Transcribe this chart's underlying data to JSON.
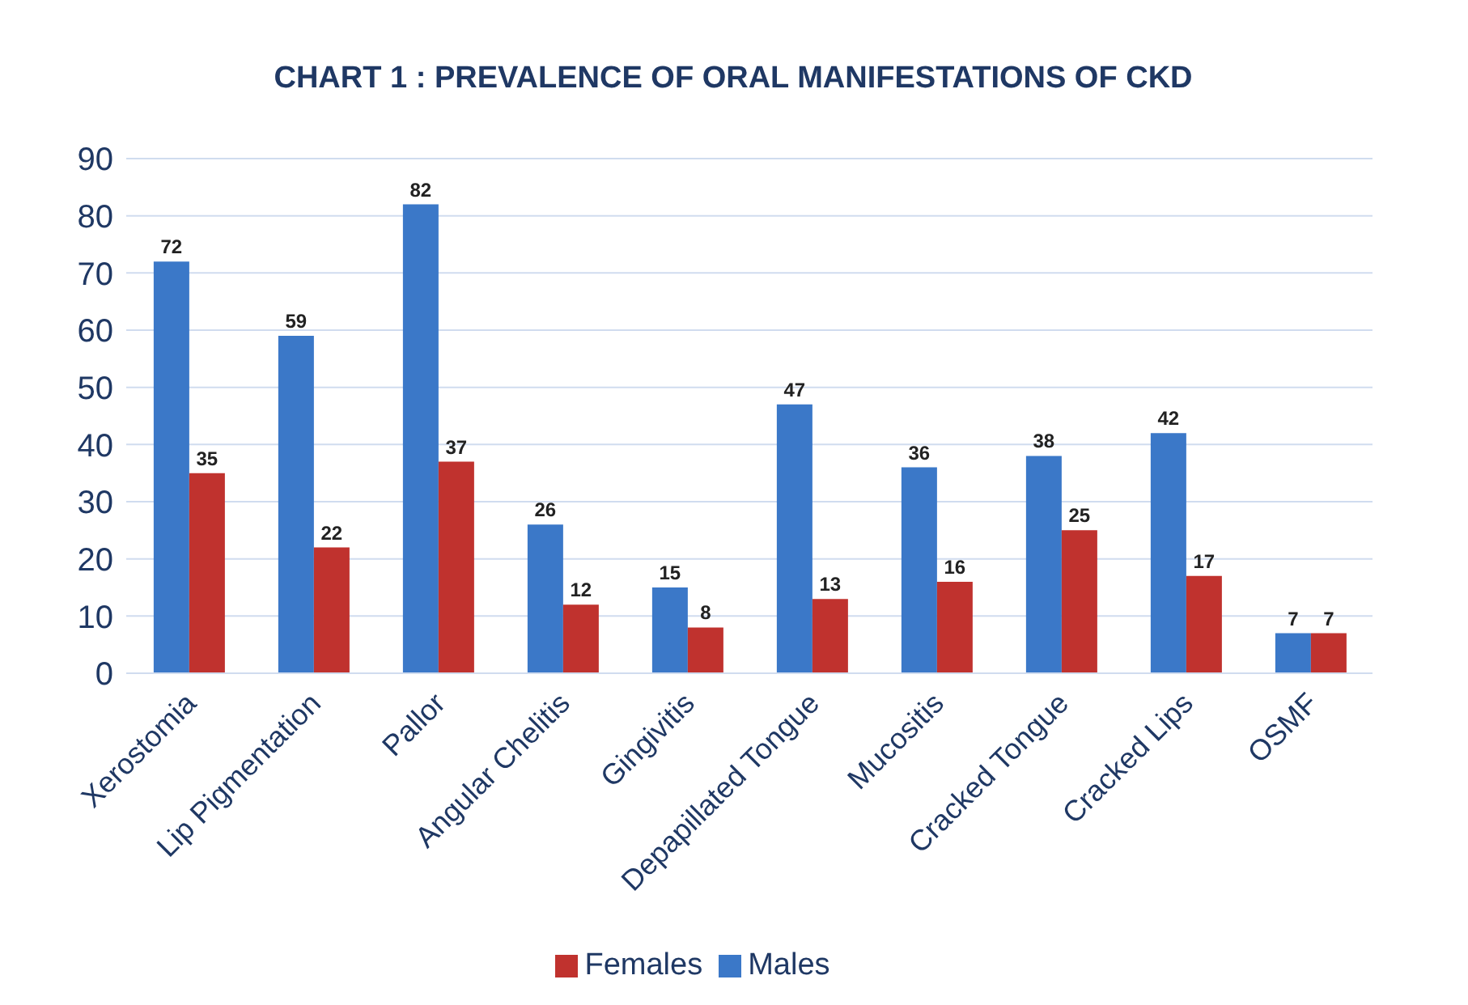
{
  "chart_data": {
    "type": "bar",
    "title": "CHART 1 : PREVALENCE OF ORAL MANIFESTATIONS OF CKD",
    "categories": [
      "Xerostomia",
      "Lip Pigmentation",
      "Pallor",
      "Angular Chelitis",
      "Gingivitis",
      "Depapillated Tongue",
      "Mucositis",
      "Cracked Tongue",
      "Cracked Lips",
      "OSMF"
    ],
    "series": [
      {
        "name": "Males",
        "color": "#3b78c8",
        "values": [
          72,
          59,
          82,
          26,
          15,
          47,
          36,
          38,
          42,
          7
        ]
      },
      {
        "name": "Females",
        "color": "#c0322e",
        "values": [
          35,
          22,
          37,
          12,
          8,
          13,
          16,
          25,
          17,
          7
        ]
      }
    ],
    "ylim": [
      0,
      90
    ],
    "yticks": [
      0,
      10,
      20,
      30,
      40,
      50,
      60,
      70,
      80,
      90
    ],
    "grid": "y",
    "legend": "bottom",
    "data_labels": true
  }
}
